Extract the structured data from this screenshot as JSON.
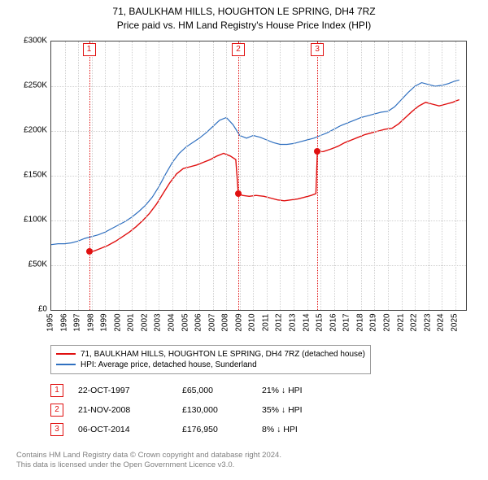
{
  "title": {
    "line1": "71, BAULKHAM HILLS, HOUGHTON LE SPRING, DH4 7RZ",
    "line2": "Price paid vs. HM Land Registry's House Price Index (HPI)"
  },
  "chart": {
    "type": "line",
    "background_color": "#ffffff",
    "grid_color": "#d0d0d0",
    "border_color": "#444444",
    "x": {
      "min": 1995,
      "max": 2025.8,
      "ticks": [
        1995,
        1996,
        1997,
        1998,
        1999,
        2000,
        2001,
        2002,
        2003,
        2004,
        2005,
        2006,
        2007,
        2008,
        2009,
        2010,
        2011,
        2012,
        2013,
        2014,
        2015,
        2016,
        2017,
        2018,
        2019,
        2020,
        2021,
        2022,
        2023,
        2024,
        2025
      ]
    },
    "y": {
      "min": 0,
      "max": 300000,
      "ticks": [
        {
          "v": 0,
          "label": "£0"
        },
        {
          "v": 50000,
          "label": "£50K"
        },
        {
          "v": 100000,
          "label": "£100K"
        },
        {
          "v": 150000,
          "label": "£150K"
        },
        {
          "v": 200000,
          "label": "£200K"
        },
        {
          "v": 250000,
          "label": "£250K"
        },
        {
          "v": 300000,
          "label": "£300K"
        }
      ]
    },
    "series": [
      {
        "name": "red",
        "label": "71, BAULKHAM HILLS, HOUGHTON LE SPRING, DH4 7RZ (detached house)",
        "color": "#e01010",
        "width": 1.4,
        "data": [
          [
            1997.81,
            65000
          ],
          [
            1998.2,
            66000
          ],
          [
            1998.7,
            69000
          ],
          [
            1999.2,
            72000
          ],
          [
            1999.8,
            77000
          ],
          [
            2000.3,
            82000
          ],
          [
            2000.8,
            87000
          ],
          [
            2001.3,
            93000
          ],
          [
            2001.8,
            100000
          ],
          [
            2002.3,
            108000
          ],
          [
            2002.8,
            118000
          ],
          [
            2003.3,
            130000
          ],
          [
            2003.8,
            142000
          ],
          [
            2004.3,
            152000
          ],
          [
            2004.8,
            158000
          ],
          [
            2005.3,
            160000
          ],
          [
            2005.8,
            162000
          ],
          [
            2006.3,
            165000
          ],
          [
            2006.8,
            168000
          ],
          [
            2007.3,
            172000
          ],
          [
            2007.8,
            175000
          ],
          [
            2008.3,
            172000
          ],
          [
            2008.7,
            168000
          ],
          [
            2008.89,
            130000
          ],
          [
            2009.2,
            128000
          ],
          [
            2009.7,
            127000
          ],
          [
            2010.2,
            128000
          ],
          [
            2010.8,
            127000
          ],
          [
            2011.3,
            125000
          ],
          [
            2011.8,
            123000
          ],
          [
            2012.3,
            122000
          ],
          [
            2012.8,
            123000
          ],
          [
            2013.3,
            124000
          ],
          [
            2013.8,
            126000
          ],
          [
            2014.3,
            128000
          ],
          [
            2014.65,
            130000
          ],
          [
            2014.76,
            176950
          ],
          [
            2015.2,
            177000
          ],
          [
            2015.8,
            180000
          ],
          [
            2016.3,
            183000
          ],
          [
            2016.8,
            187000
          ],
          [
            2017.3,
            190000
          ],
          [
            2017.8,
            193000
          ],
          [
            2018.3,
            196000
          ],
          [
            2018.8,
            198000
          ],
          [
            2019.3,
            200000
          ],
          [
            2019.8,
            202000
          ],
          [
            2020.3,
            203000
          ],
          [
            2020.8,
            208000
          ],
          [
            2021.3,
            215000
          ],
          [
            2021.8,
            222000
          ],
          [
            2022.3,
            228000
          ],
          [
            2022.8,
            232000
          ],
          [
            2023.3,
            230000
          ],
          [
            2023.8,
            228000
          ],
          [
            2024.3,
            230000
          ],
          [
            2024.8,
            232000
          ],
          [
            2025.3,
            235000
          ]
        ]
      },
      {
        "name": "blue",
        "label": "HPI: Average price, detached house, Sunderland",
        "color": "#3070c0",
        "width": 1.2,
        "data": [
          [
            1995.0,
            73000
          ],
          [
            1995.5,
            74000
          ],
          [
            1996.0,
            74000
          ],
          [
            1996.5,
            75000
          ],
          [
            1997.0,
            77000
          ],
          [
            1997.5,
            80000
          ],
          [
            1998.0,
            82000
          ],
          [
            1998.5,
            84000
          ],
          [
            1999.0,
            87000
          ],
          [
            1999.5,
            91000
          ],
          [
            2000.0,
            95000
          ],
          [
            2000.5,
            99000
          ],
          [
            2001.0,
            104000
          ],
          [
            2001.5,
            110000
          ],
          [
            2002.0,
            117000
          ],
          [
            2002.5,
            126000
          ],
          [
            2003.0,
            138000
          ],
          [
            2003.5,
            152000
          ],
          [
            2004.0,
            165000
          ],
          [
            2004.5,
            175000
          ],
          [
            2005.0,
            182000
          ],
          [
            2005.5,
            187000
          ],
          [
            2006.0,
            192000
          ],
          [
            2006.5,
            198000
          ],
          [
            2007.0,
            205000
          ],
          [
            2007.5,
            212000
          ],
          [
            2008.0,
            215000
          ],
          [
            2008.5,
            207000
          ],
          [
            2009.0,
            195000
          ],
          [
            2009.5,
            192000
          ],
          [
            2010.0,
            195000
          ],
          [
            2010.5,
            193000
          ],
          [
            2011.0,
            190000
          ],
          [
            2011.5,
            187000
          ],
          [
            2012.0,
            185000
          ],
          [
            2012.5,
            185000
          ],
          [
            2013.0,
            186000
          ],
          [
            2013.5,
            188000
          ],
          [
            2014.0,
            190000
          ],
          [
            2014.5,
            192000
          ],
          [
            2015.0,
            195000
          ],
          [
            2015.5,
            198000
          ],
          [
            2016.0,
            202000
          ],
          [
            2016.5,
            206000
          ],
          [
            2017.0,
            209000
          ],
          [
            2017.5,
            212000
          ],
          [
            2018.0,
            215000
          ],
          [
            2018.5,
            217000
          ],
          [
            2019.0,
            219000
          ],
          [
            2019.5,
            221000
          ],
          [
            2020.0,
            222000
          ],
          [
            2020.5,
            227000
          ],
          [
            2021.0,
            235000
          ],
          [
            2021.5,
            243000
          ],
          [
            2022.0,
            250000
          ],
          [
            2022.5,
            254000
          ],
          [
            2023.0,
            252000
          ],
          [
            2023.5,
            250000
          ],
          [
            2024.0,
            251000
          ],
          [
            2024.5,
            253000
          ],
          [
            2025.0,
            256000
          ],
          [
            2025.3,
            257000
          ]
        ]
      }
    ],
    "sale_points": [
      {
        "x": 1997.81,
        "y": 65000,
        "color": "#e01010"
      },
      {
        "x": 2008.89,
        "y": 130000,
        "color": "#e01010"
      },
      {
        "x": 2014.76,
        "y": 176950,
        "color": "#e01010"
      }
    ],
    "markers": [
      {
        "n": "1",
        "x": 1997.81,
        "color": "#e01010"
      },
      {
        "n": "2",
        "x": 2008.89,
        "color": "#e01010"
      },
      {
        "n": "3",
        "x": 2014.76,
        "color": "#e01010"
      }
    ]
  },
  "legend": {
    "rows": [
      {
        "color": "#e01010",
        "label": "71, BAULKHAM HILLS, HOUGHTON LE SPRING, DH4 7RZ (detached house)"
      },
      {
        "color": "#3070c0",
        "label": "HPI: Average price, detached house, Sunderland"
      }
    ]
  },
  "events": [
    {
      "n": "1",
      "color": "#e01010",
      "date": "22-OCT-1997",
      "price": "£65,000",
      "diff": "21% ↓ HPI"
    },
    {
      "n": "2",
      "color": "#e01010",
      "date": "21-NOV-2008",
      "price": "£130,000",
      "diff": "35% ↓ HPI"
    },
    {
      "n": "3",
      "color": "#e01010",
      "date": "06-OCT-2014",
      "price": "£176,950",
      "diff": "8% ↓ HPI"
    }
  ],
  "footer": {
    "line1": "Contains HM Land Registry data © Crown copyright and database right 2024.",
    "line2": "This data is licensed under the Open Government Licence v3.0."
  }
}
